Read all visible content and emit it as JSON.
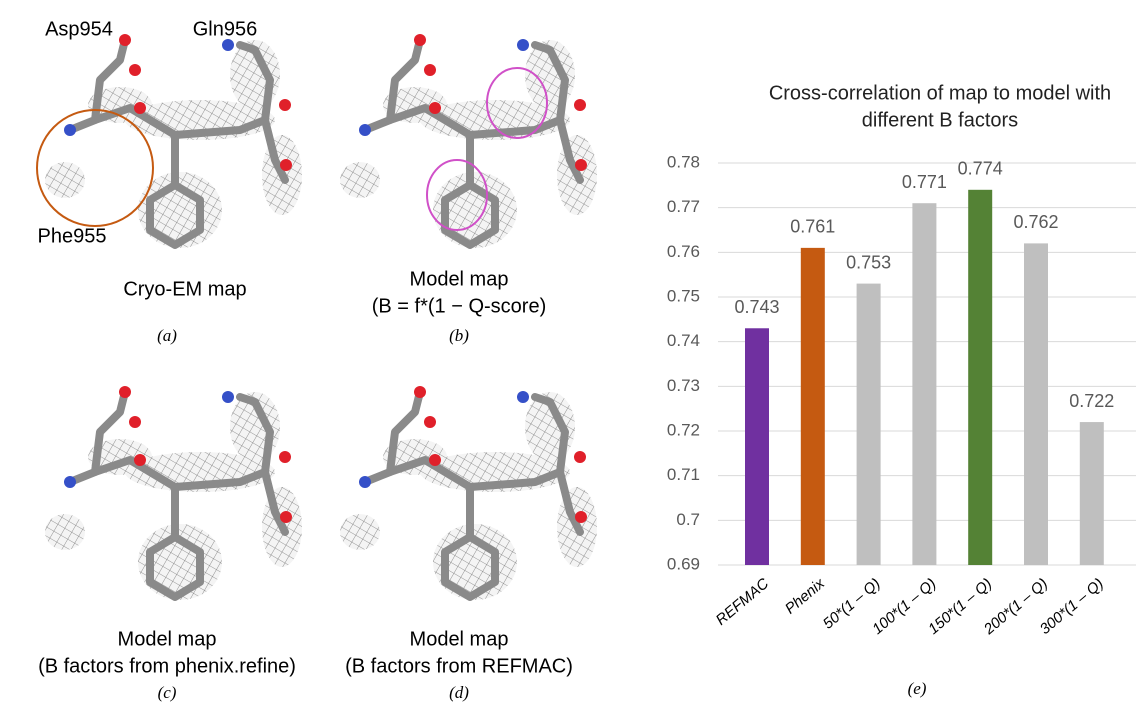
{
  "panels": [
    {
      "labels": [
        "Asp954",
        "Gln956",
        "Phe955"
      ],
      "caption": [
        "Cryo-EM map"
      ],
      "letter": "(a)"
    },
    {
      "caption": [
        "Model map",
        "(B = f*(1 − Q-score)"
      ],
      "letter": "(b)"
    },
    {
      "caption": [
        "Model map",
        "(B factors from phenix.refine)"
      ],
      "letter": "(c)"
    },
    {
      "caption": [
        "Model map",
        "(B factors from REFMAC)"
      ],
      "letter": "(d)"
    }
  ],
  "chart_data": {
    "type": "bar",
    "title": [
      "Cross-correlation of map to model with",
      "different B factors"
    ],
    "categories": [
      "REFMAC",
      "Phenix",
      "50*(1 – Q)",
      "100*(1 – Q)",
      "150*(1 – Q)",
      "200*(1 – Q)",
      "300*(1 – Q)"
    ],
    "values": [
      0.743,
      0.761,
      0.753,
      0.771,
      0.774,
      0.762,
      0.722
    ],
    "colors": [
      "#7030a0",
      "#c55a11",
      "#bfbfbf",
      "#bfbfbf",
      "#548235",
      "#bfbfbf",
      "#bfbfbf"
    ],
    "ylim": [
      0.69,
      0.78
    ],
    "yticks": [
      0.69,
      0.7,
      0.71,
      0.72,
      0.73,
      0.74,
      0.75,
      0.76,
      0.77,
      0.78
    ],
    "grid": true,
    "letter": "(e)"
  }
}
